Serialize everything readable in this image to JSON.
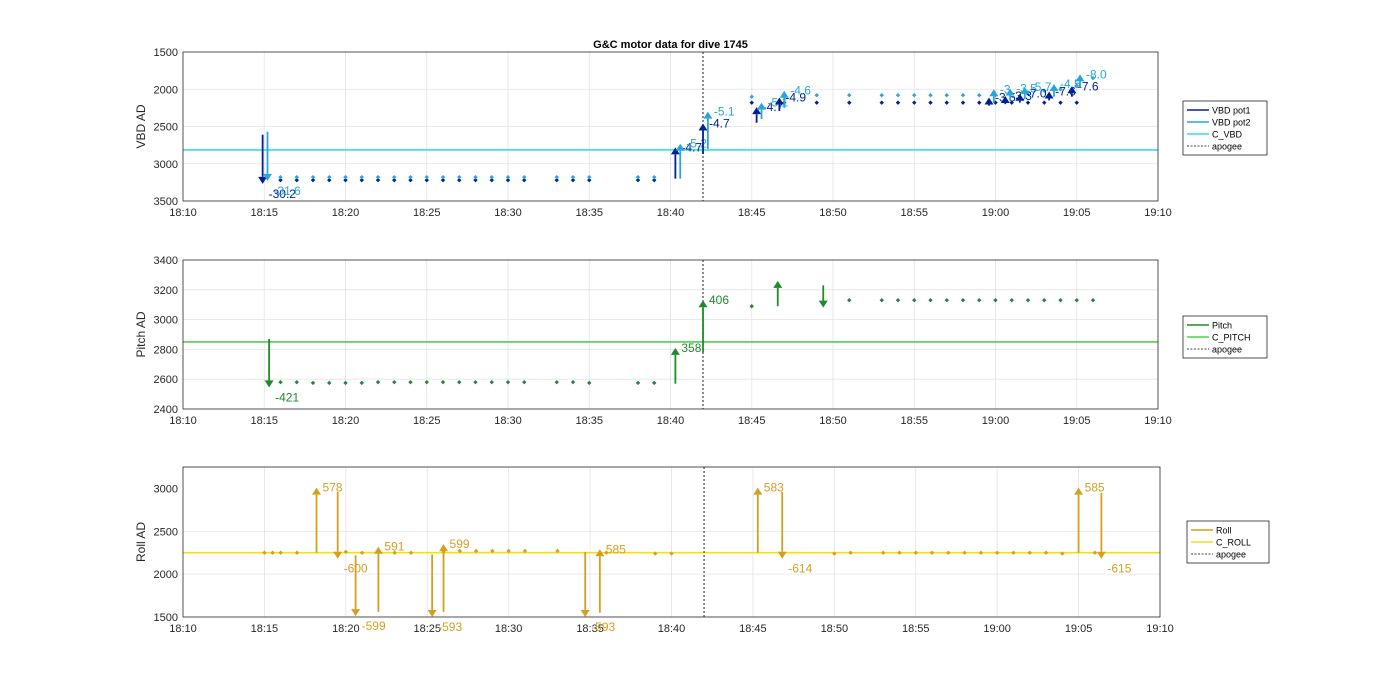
{
  "chart_data": [
    {
      "type": "scatter",
      "title": "G&C motor data for dive 1745",
      "ylabel": "VBD AD",
      "ylim": [
        1500,
        3500
      ],
      "y_reversed": true,
      "yticks": [
        1500,
        2000,
        2500,
        3000,
        3500
      ],
      "xlim": [
        "18:10",
        "19:10"
      ],
      "xticks": [
        "18:10",
        "18:15",
        "18:20",
        "18:25",
        "18:30",
        "18:35",
        "18:40",
        "18:45",
        "18:50",
        "18:55",
        "19:00",
        "19:05",
        "19:10"
      ],
      "grid": true,
      "legend_position": "right",
      "legend": [
        "VBD pot1",
        "VBD pot2",
        "C_VBD",
        "apogee"
      ],
      "colors": {
        "pot1": "#00209a",
        "pot2": "#2aa5dc",
        "c_vbd": "#35e0e0",
        "apogee": "#444444"
      },
      "hlines": [
        {
          "name": "C_VBD",
          "y": 2815
        }
      ],
      "vlines": [
        {
          "name": "apogee",
          "x": "18:42"
        }
      ],
      "series": [
        {
          "name": "VBD pot1",
          "x": [
            "18:16",
            "18:17",
            "18:18",
            "18:19",
            "18:20",
            "18:21",
            "18:22",
            "18:23",
            "18:24",
            "18:25",
            "18:26",
            "18:27",
            "18:28",
            "18:29",
            "18:30",
            "18:31",
            "18:33",
            "18:34",
            "18:35",
            "18:38",
            "18:39",
            "18:45",
            "18:47",
            "18:49",
            "18:51",
            "18:53",
            "18:54",
            "18:55",
            "18:56",
            "18:57",
            "18:58",
            "18:59",
            "19:00",
            "19:01",
            "19:02",
            "19:03",
            "19:04",
            "19:05"
          ],
          "y": [
            3220,
            3220,
            3220,
            3220,
            3220,
            3220,
            3220,
            3220,
            3220,
            3220,
            3220,
            3220,
            3220,
            3220,
            3220,
            3220,
            3220,
            3220,
            3220,
            3220,
            3220,
            2180,
            2180,
            2180,
            2180,
            2180,
            2180,
            2180,
            2180,
            2180,
            2180,
            2180,
            2180,
            2180,
            2180,
            2180,
            2180,
            2180
          ]
        },
        {
          "name": "VBD pot2",
          "x": [
            "18:16",
            "18:17",
            "18:18",
            "18:19",
            "18:20",
            "18:21",
            "18:22",
            "18:23",
            "18:24",
            "18:25",
            "18:26",
            "18:27",
            "18:28",
            "18:29",
            "18:30",
            "18:31",
            "18:33",
            "18:34",
            "18:35",
            "18:38",
            "18:39",
            "18:45",
            "18:47",
            "18:49",
            "18:51",
            "18:53",
            "18:54",
            "18:55",
            "18:56",
            "18:57",
            "18:58",
            "18:59",
            "19:00",
            "19:01",
            "19:02",
            "19:03",
            "19:04",
            "19:05",
            "19:06"
          ],
          "y": [
            3180,
            3180,
            3180,
            3180,
            3180,
            3180,
            3180,
            3180,
            3180,
            3180,
            3180,
            3180,
            3180,
            3180,
            3180,
            3180,
            3180,
            3180,
            3180,
            3180,
            3180,
            2100,
            2100,
            2080,
            2080,
            2080,
            2080,
            2080,
            2080,
            2080,
            2080,
            2080,
            2080,
            2060,
            2040,
            2020,
            2000,
            1950,
            1850
          ]
        }
      ],
      "arrows": [
        {
          "series": "VBD pot1",
          "x": "18:14.9",
          "y_from": 2610,
          "y_to": 3270,
          "label": "-30.2"
        },
        {
          "series": "VBD pot2",
          "x": "18:15.2",
          "y_from": 2570,
          "y_to": 3230,
          "label": "-31.6"
        },
        {
          "series": "VBD pot1",
          "x": "18:40.3",
          "y_from": 3200,
          "y_to": 2780,
          "label": "-4.7"
        },
        {
          "series": "VBD pot2",
          "x": "18:40.6",
          "y_from": 3200,
          "y_to": 2730,
          "label": "-5.2"
        },
        {
          "series": "VBD pot1",
          "x": "18:42.0",
          "y_from": 2870,
          "y_to": 2460,
          "label": "-4.7"
        },
        {
          "series": "VBD pot2",
          "x": "18:42.3",
          "y_from": 2800,
          "y_to": 2300,
          "label": "-5.1"
        },
        {
          "series": "VBD pot1",
          "x": "18:45.3",
          "y_from": 2450,
          "y_to": 2240,
          "label": "-4.7"
        },
        {
          "series": "VBD pot2",
          "x": "18:45.6",
          "y_from": 2400,
          "y_to": 2180,
          "label": "-5.1"
        },
        {
          "series": "VBD pot1",
          "x": "18:46.7",
          "y_from": 2290,
          "y_to": 2110,
          "label": "-4.9"
        },
        {
          "series": "VBD pot2",
          "x": "18:47.0",
          "y_from": 2250,
          "y_to": 2020,
          "label": "-4.6"
        },
        {
          "series": "VBD pot1",
          "x": "18:59.6",
          "y_from": 2220,
          "y_to": 2110,
          "label": "-3.5"
        },
        {
          "series": "VBD pot2",
          "x": "18:59.9",
          "y_from": 2180,
          "y_to": 2000,
          "label": "-3"
        },
        {
          "series": "VBD pot1",
          "x": "19:00.6",
          "y_from": 2200,
          "y_to": 2090,
          "label": "-3.3"
        },
        {
          "series": "VBD pot2",
          "x": "19:00.9",
          "y_from": 2150,
          "y_to": 1990,
          "label": "-3.5"
        },
        {
          "series": "VBD pot1",
          "x": "19:01.5",
          "y_from": 2180,
          "y_to": 2060,
          "label": "-7.0"
        },
        {
          "series": "VBD pot2",
          "x": "19:01.8",
          "y_from": 2130,
          "y_to": 1970,
          "label": "-5.7"
        },
        {
          "series": "VBD pot1",
          "x": "19:03.3",
          "y_from": 2150,
          "y_to": 2030,
          "label": "-7.6"
        },
        {
          "series": "VBD pot2",
          "x": "19:03.6",
          "y_from": 2100,
          "y_to": 1930,
          "label": "-4.5"
        },
        {
          "series": "VBD pot1",
          "x": "19:04.7",
          "y_from": 2100,
          "y_to": 1960,
          "label": "-7.6"
        },
        {
          "series": "VBD pot2",
          "x": "19:05.2",
          "y_from": 1980,
          "y_to": 1800,
          "label": "-8.0"
        }
      ]
    },
    {
      "type": "scatter",
      "ylabel": "Pitch AD",
      "ylim": [
        2400,
        3400
      ],
      "yticks": [
        2400,
        2600,
        2800,
        3000,
        3200,
        3400
      ],
      "xlim": [
        "18:10",
        "19:10"
      ],
      "xticks": [
        "18:10",
        "18:15",
        "18:20",
        "18:25",
        "18:30",
        "18:35",
        "18:40",
        "18:45",
        "18:50",
        "18:55",
        "19:00",
        "19:05",
        "19:10"
      ],
      "grid": true,
      "legend_position": "right",
      "legend": [
        "Pitch",
        "C_PITCH",
        "apogee"
      ],
      "colors": {
        "pitch": "#1f8a2a",
        "c_pitch": "#4fd04f",
        "apogee": "#444444"
      },
      "hlines": [
        {
          "name": "C_PITCH",
          "y": 2850
        }
      ],
      "vlines": [
        {
          "name": "apogee",
          "x": "18:42"
        }
      ],
      "series": [
        {
          "name": "Pitch",
          "x": [
            "18:16",
            "18:17",
            "18:18",
            "18:19",
            "18:20",
            "18:21",
            "18:22",
            "18:23",
            "18:24",
            "18:25",
            "18:26",
            "18:27",
            "18:28",
            "18:29",
            "18:30",
            "18:31",
            "18:33",
            "18:34",
            "18:35",
            "18:38",
            "18:39",
            "18:45",
            "18:51",
            "18:53",
            "18:54",
            "18:55",
            "18:56",
            "18:57",
            "18:58",
            "18:59",
            "19:00",
            "19:01",
            "19:02",
            "19:03",
            "19:04",
            "19:05",
            "19:06"
          ],
          "y": [
            2580,
            2580,
            2575,
            2575,
            2575,
            2575,
            2580,
            2580,
            2580,
            2580,
            2580,
            2580,
            2580,
            2580,
            2580,
            2580,
            2580,
            2580,
            2575,
            2575,
            2575,
            3090,
            3130,
            3130,
            3130,
            3130,
            3130,
            3130,
            3130,
            3130,
            3130,
            3130,
            3130,
            3130,
            3130,
            3130,
            3130
          ]
        }
      ],
      "arrows": [
        {
          "series": "Pitch",
          "x": "18:15.3",
          "y_from": 2870,
          "y_to": 2545,
          "label": "-421"
        },
        {
          "series": "Pitch",
          "x": "18:40.3",
          "y_from": 2570,
          "y_to": 2810,
          "label": "358"
        },
        {
          "series": "Pitch",
          "x": "18:42.0",
          "y_from": 2780,
          "y_to": 3130,
          "label": "406"
        },
        {
          "series": "Pitch",
          "x": "18:46.6",
          "y_from": 3090,
          "y_to": 3260,
          "label": ""
        },
        {
          "series": "Pitch",
          "x": "18:49.4",
          "y_from": 3230,
          "y_to": 3080,
          "label": ""
        }
      ]
    },
    {
      "type": "scatter",
      "ylabel": "Roll AD",
      "ylim": [
        1500,
        3250
      ],
      "yticks": [
        1500,
        2000,
        2500,
        3000
      ],
      "xlim": [
        "18:10",
        "19:10"
      ],
      "xticks": [
        "18:10",
        "18:15",
        "18:20",
        "18:25",
        "18:30",
        "18:35",
        "18:40",
        "18:45",
        "18:50",
        "18:55",
        "19:00",
        "19:05",
        "19:10"
      ],
      "grid": true,
      "legend_position": "right",
      "legend": [
        "Roll",
        "C_ROLL",
        "apogee"
      ],
      "colors": {
        "roll": "#d4a020",
        "c_roll": "#f0e020",
        "apogee": "#444444"
      },
      "hlines": [
        {
          "name": "C_ROLL",
          "y": 2250
        }
      ],
      "vlines": [
        {
          "name": "apogee",
          "x": "18:42"
        }
      ],
      "series": [
        {
          "name": "Roll",
          "x": [
            "18:15",
            "18:15.5",
            "18:16",
            "18:17",
            "18:20",
            "18:21",
            "18:22",
            "18:23",
            "18:24",
            "18:26",
            "18:27",
            "18:28",
            "18:29",
            "18:30",
            "18:31",
            "18:33",
            "18:36",
            "18:39",
            "18:40",
            "18:50",
            "18:51",
            "18:53",
            "18:54",
            "18:55",
            "18:56",
            "18:57",
            "18:58",
            "18:59",
            "19:00",
            "19:01",
            "19:02",
            "19:03",
            "19:04",
            "19:06"
          ],
          "y": [
            2250,
            2250,
            2250,
            2250,
            2260,
            2250,
            2260,
            2250,
            2250,
            2260,
            2270,
            2270,
            2270,
            2270,
            2270,
            2270,
            2250,
            2240,
            2240,
            2240,
            2250,
            2250,
            2250,
            2250,
            2250,
            2250,
            2250,
            2250,
            2250,
            2250,
            2250,
            2250,
            2240,
            2250
          ]
        }
      ],
      "arrows": [
        {
          "series": "Roll",
          "x": "18:18.2",
          "y_from": 2250,
          "y_to": 3010,
          "label": "578"
        },
        {
          "series": "Roll",
          "x": "18:19.5",
          "y_from": 2960,
          "y_to": 2180,
          "label": "-600"
        },
        {
          "series": "Roll",
          "x": "18:20.6",
          "y_from": 2220,
          "y_to": 1510,
          "label": "-599"
        },
        {
          "series": "Roll",
          "x": "18:22.0",
          "y_from": 1560,
          "y_to": 2320,
          "label": "591"
        },
        {
          "series": "Roll",
          "x": "18:25.3",
          "y_from": 2230,
          "y_to": 1500,
          "label": "-593"
        },
        {
          "series": "Roll",
          "x": "18:26.0",
          "y_from": 1560,
          "y_to": 2350,
          "label": "599"
        },
        {
          "series": "Roll",
          "x": "18:34.7",
          "y_from": 2260,
          "y_to": 1500,
          "label": "-593"
        },
        {
          "series": "Roll",
          "x": "18:35.6",
          "y_from": 1550,
          "y_to": 2290,
          "label": "585"
        },
        {
          "series": "Roll",
          "x": "18:45.3",
          "y_from": 2250,
          "y_to": 3010,
          "label": "583"
        },
        {
          "series": "Roll",
          "x": "18:46.8",
          "y_from": 2960,
          "y_to": 2180,
          "label": "-614"
        },
        {
          "series": "Roll",
          "x": "19:05.0",
          "y_from": 2250,
          "y_to": 3010,
          "label": "585"
        },
        {
          "series": "Roll",
          "x": "19:06.4",
          "y_from": 2950,
          "y_to": 2180,
          "label": "-615"
        }
      ]
    }
  ]
}
